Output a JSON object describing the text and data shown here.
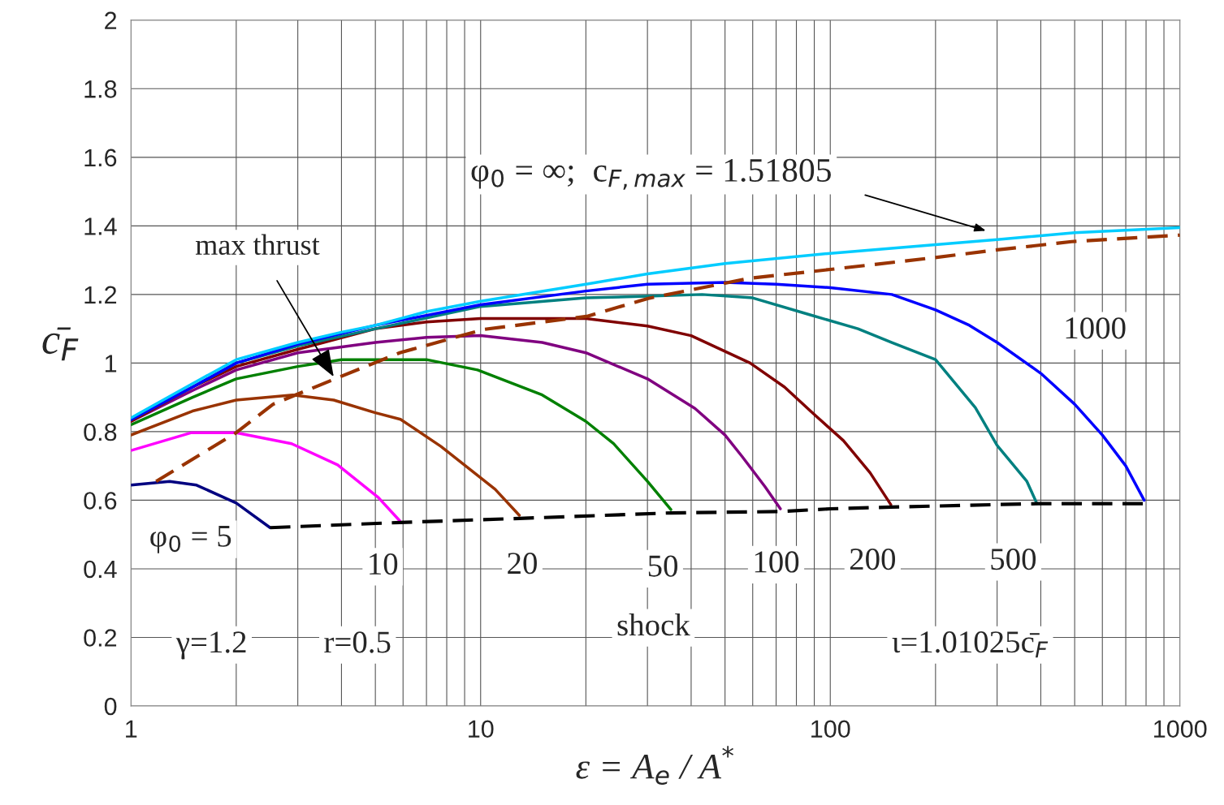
{
  "chart_data": {
    "type": "line",
    "xlabel": "ε = A$_{e}$ / A$^{*}$",
    "ylabel": "c̄$_{F}$",
    "log": "x",
    "grid": true,
    "legend": false,
    "marker": "none",
    "xlim": [
      1,
      1000
    ],
    "ylim": [
      0,
      2
    ],
    "xticks": [
      1,
      {
        "value": 2,
        "label": null
      },
      {
        "value": 3,
        "label": null
      },
      {
        "value": 4,
        "label": null
      },
      {
        "value": 5,
        "label": null
      },
      {
        "value": 6,
        "label": null
      },
      {
        "value": 7,
        "label": null
      },
      {
        "value": 8,
        "label": null
      },
      {
        "value": 9,
        "label": null
      },
      10,
      {
        "value": 20,
        "label": null
      },
      {
        "value": 30,
        "label": null
      },
      {
        "value": 40,
        "label": null
      },
      {
        "value": 50,
        "label": null
      },
      {
        "value": 60,
        "label": null
      },
      {
        "value": 70,
        "label": null
      },
      {
        "value": 80,
        "label": null
      },
      {
        "value": 90,
        "label": null
      },
      100,
      {
        "value": 200,
        "label": null
      },
      {
        "value": 300,
        "label": null
      },
      {
        "value": 400,
        "label": null
      },
      {
        "value": 500,
        "label": null
      },
      {
        "value": 600,
        "label": null
      },
      {
        "value": 700,
        "label": null
      },
      {
        "value": 800,
        "label": null
      },
      {
        "value": 900,
        "label": null
      },
      1000
    ],
    "yticks": [
      0,
      0.2,
      0.4,
      0.6,
      0.8,
      1,
      1.2,
      1.4,
      1.6,
      1.8,
      2
    ],
    "series": [
      {
        "color": "#000080",
        "line_style": "solid",
        "x": [
          1,
          1.29,
          1.54,
          2,
          2.5
        ],
        "values": [
          0.644,
          0.655,
          0.644,
          0.592,
          0.52
        ]
      },
      {
        "color": "#ff00ff",
        "line_style": "solid",
        "x": [
          1,
          1.49,
          2,
          2.88,
          3.9,
          5.1,
          5.87
        ],
        "values": [
          0.745,
          0.797,
          0.797,
          0.765,
          0.703,
          0.608,
          0.54
        ]
      },
      {
        "color": "#993300",
        "line_style": "solid",
        "x": [
          1,
          1.5,
          2,
          2.9,
          3.8,
          5,
          5.9,
          7.7,
          11,
          12.9
        ],
        "values": [
          0.79,
          0.86,
          0.892,
          0.907,
          0.892,
          0.855,
          0.836,
          0.757,
          0.632,
          0.556
        ]
      },
      {
        "color": "#008000",
        "line_style": "solid",
        "x": [
          1,
          1.5,
          2,
          3,
          4,
          7,
          9.8,
          15,
          20,
          24,
          30,
          35
        ],
        "values": [
          0.82,
          0.9,
          0.954,
          0.99,
          1.01,
          1.01,
          0.98,
          0.907,
          0.83,
          0.765,
          0.655,
          0.573
        ]
      },
      {
        "color": "#800080",
        "line_style": "solid",
        "x": [
          1,
          1.5,
          2,
          3,
          5,
          7,
          10,
          15,
          20,
          30,
          41,
          50,
          56,
          65,
          72
        ],
        "values": [
          0.83,
          0.92,
          0.98,
          1.03,
          1.06,
          1.075,
          1.08,
          1.06,
          1.03,
          0.954,
          0.868,
          0.79,
          0.727,
          0.64,
          0.575
        ]
      },
      {
        "color": "#800000",
        "line_style": "solid",
        "x": [
          1,
          1.5,
          2,
          3,
          5,
          7,
          10,
          20,
          30,
          40,
          59,
          74,
          90,
          109,
          130,
          149
        ],
        "values": [
          0.83,
          0.93,
          0.99,
          1.04,
          1.1,
          1.12,
          1.13,
          1.13,
          1.108,
          1.08,
          1.0,
          0.93,
          0.85,
          0.774,
          0.68,
          0.587
        ]
      },
      {
        "color": "#008080",
        "line_style": "solid",
        "x": [
          1,
          1.5,
          2,
          3,
          5,
          10,
          20,
          30,
          43,
          60,
          88,
          120,
          150,
          200,
          260,
          300,
          365,
          390
        ],
        "values": [
          0.835,
          0.93,
          1.0,
          1.05,
          1.1,
          1.165,
          1.19,
          1.195,
          1.2,
          1.19,
          1.14,
          1.1,
          1.06,
          1.01,
          0.87,
          0.76,
          0.655,
          0.59
        ]
      },
      {
        "color": "#0000ff",
        "line_style": "solid",
        "x": [
          1,
          1.5,
          2,
          3,
          5,
          10,
          20,
          30,
          50,
          70,
          100,
          150,
          200,
          250,
          300,
          400,
          500,
          600,
          700,
          790
        ],
        "values": [
          0.835,
          0.93,
          1.0,
          1.055,
          1.11,
          1.17,
          1.21,
          1.23,
          1.235,
          1.23,
          1.22,
          1.2,
          1.155,
          1.11,
          1.06,
          0.97,
          0.88,
          0.79,
          0.7,
          0.6
        ]
      },
      {
        "color": "#00ccff",
        "line_style": "solid",
        "x": [
          1,
          1.5,
          2,
          3,
          4,
          5,
          7,
          10,
          20,
          30,
          50,
          100,
          200,
          300,
          500,
          1000
        ],
        "values": [
          0.84,
          0.94,
          1.01,
          1.06,
          1.09,
          1.11,
          1.15,
          1.18,
          1.23,
          1.26,
          1.29,
          1.32,
          1.345,
          1.36,
          1.38,
          1.395
        ]
      },
      {
        "color": "#993300",
        "line_style": "dashed",
        "x": [
          1.18,
          2,
          2.55,
          3.77,
          5.87,
          10.2,
          20.1,
          30,
          58.6,
          100,
          197,
          300,
          490,
          1000
        ],
        "values": [
          0.655,
          0.797,
          0.88,
          0.951,
          1.03,
          1.098,
          1.136,
          1.188,
          1.247,
          1.273,
          1.307,
          1.33,
          1.354,
          1.373
        ]
      },
      {
        "color": "#000000",
        "line_style": "dashed",
        "x": [
          2.5,
          5.87,
          12.9,
          35,
          72,
          100,
          149,
          390,
          790
        ],
        "values": [
          0.52,
          0.535,
          0.547,
          0.563,
          0.567,
          0.575,
          0.58,
          0.59,
          0.59
        ]
      }
    ],
    "annotations": [
      "φ$_{0}$ = ∞;  c$_{F,max}$ = 1.51805",
      {
        "text": "max thrust",
        "x": 3.8,
        "y": 0.96
      },
      "φ$_{0}$ = 5",
      "10",
      "20",
      "50",
      "100",
      "200",
      "500",
      "1000",
      "γ=1.2",
      "r=0.5",
      "shock",
      "ι=1.01025c̄$_{F}$"
    ]
  }
}
